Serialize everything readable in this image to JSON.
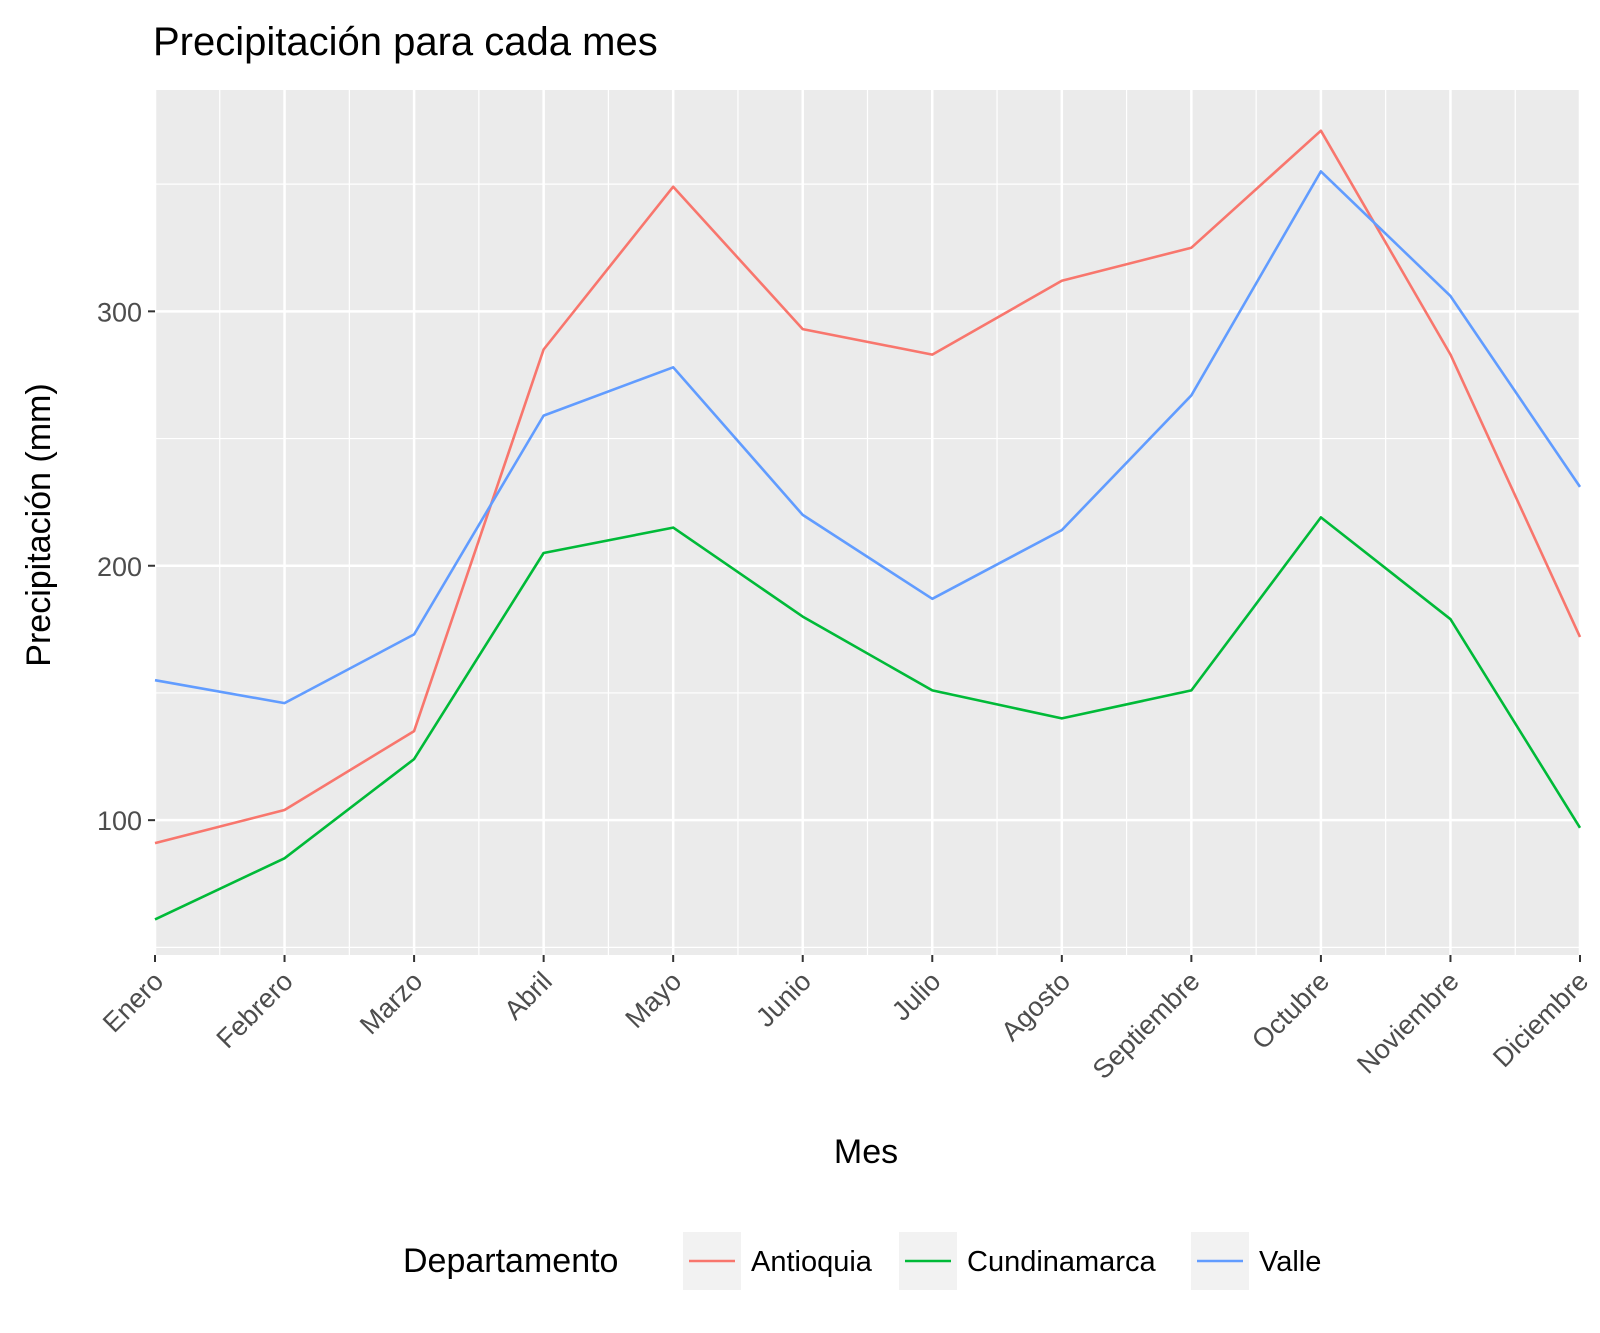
{
  "chart_data": {
    "type": "line",
    "title": "Precipitación para cada mes",
    "xlabel": "Mes",
    "ylabel": "Precipitación (mm)",
    "categories": [
      "Enero",
      "Febrero",
      "Marzo",
      "Abril",
      "Mayo",
      "Junio",
      "Julio",
      "Agosto",
      "Septiembre",
      "Octubre",
      "Noviembre",
      "Diciembre"
    ],
    "ylim": [
      47,
      387
    ],
    "yticks": [
      100,
      200,
      300
    ],
    "grid": true,
    "legend": {
      "title": "Departamento",
      "position": "bottom"
    },
    "series": [
      {
        "name": "Antioquia",
        "color": "#F8766D",
        "values": [
          91,
          104,
          135,
          285,
          349,
          293,
          283,
          312,
          325,
          371,
          283,
          172
        ]
      },
      {
        "name": "Cundinamarca",
        "color": "#00BA38",
        "values": [
          61,
          85,
          124,
          205,
          215,
          180,
          151,
          140,
          151,
          219,
          179,
          97
        ]
      },
      {
        "name": "Valle",
        "color": "#619CFF",
        "values": [
          155,
          146,
          173,
          259,
          278,
          220,
          187,
          214,
          267,
          355,
          306,
          231
        ]
      }
    ]
  }
}
